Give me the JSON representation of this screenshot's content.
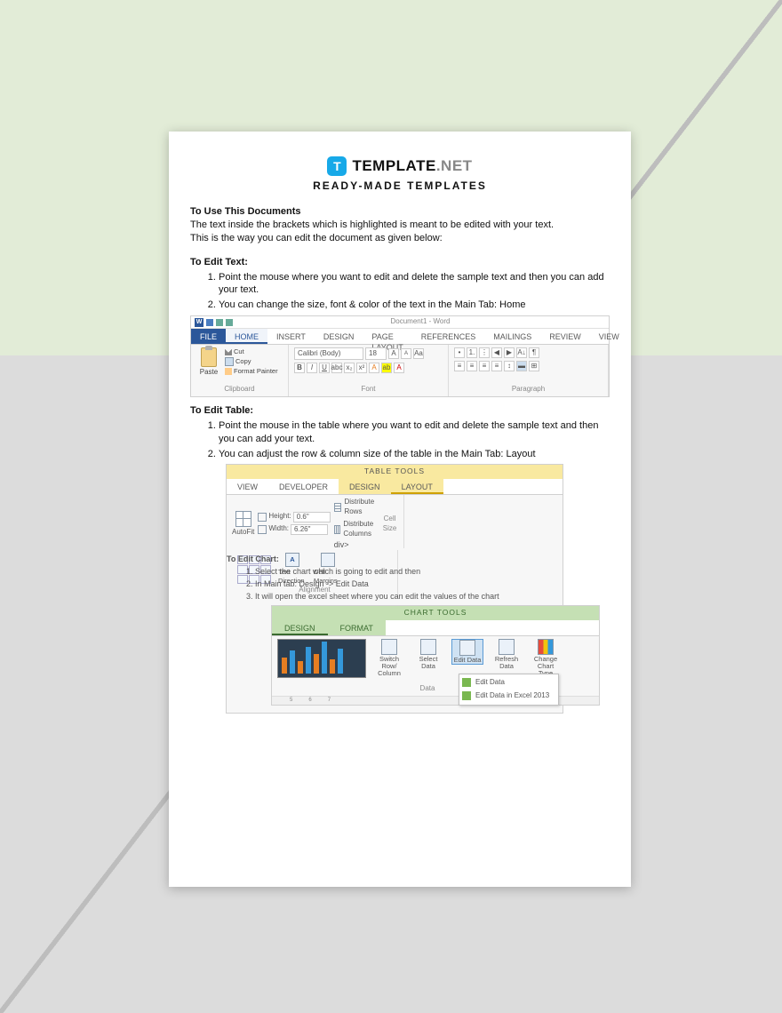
{
  "brand": {
    "badge_letter": "T",
    "name": "TEMPLATE",
    "suffix": ".NET",
    "tagline": "READY-MADE TEMPLATES"
  },
  "intro": {
    "heading": "To Use This Documents",
    "line1": "The text inside the brackets which is highlighted is meant to be edited with your text.",
    "line2": "This is the way you can edit the document as given below:"
  },
  "edit_text": {
    "heading": "To Edit Text:",
    "steps": [
      "Point the mouse where you want to edit and delete the sample text and then you can add your text.",
      "You can change the size, font & color of the text in the Main Tab: Home"
    ]
  },
  "edit_table": {
    "heading": "To Edit Table:",
    "steps": [
      "Point the mouse in the table where you want to edit and delete the sample text and then you can add your text.",
      "You can adjust the row & column size of the table in the Main Tab: Layout"
    ]
  },
  "edit_chart": {
    "heading": "To Edit Chart:",
    "steps": [
      "Select the chart which is going to edit and then",
      "In Main tab: Design -> Edit Data",
      "It will open the excel sheet where you can edit the values of the chart"
    ]
  },
  "ribbon1": {
    "doc_title": "Document1 - Word",
    "tabs": [
      "FILE",
      "HOME",
      "INSERT",
      "DESIGN",
      "PAGE LAYOUT",
      "REFERENCES",
      "MAILINGS",
      "REVIEW",
      "VIEW"
    ],
    "active_tab": "HOME",
    "clipboard": {
      "paste": "Paste",
      "cut": "Cut",
      "copy": "Copy",
      "format_painter": "Format Painter",
      "group": "Clipboard"
    },
    "font": {
      "name": "Calibri (Body)",
      "size": "18",
      "group": "Font"
    },
    "paragraph": {
      "group": "Paragraph"
    }
  },
  "ribbon2": {
    "tools": "TABLE TOOLS",
    "left_tabs": [
      "VIEW",
      "DEVELOPER"
    ],
    "ctx_tabs": [
      "DESIGN",
      "LAYOUT"
    ],
    "active": "LAYOUT",
    "autofit": "AutoFit",
    "height_label": "Height:",
    "height_val": "0.6\"",
    "width_label": "Width:",
    "width_val": "6.26\"",
    "dist_rows": "Distribute Rows",
    "dist_cols": "Distribute Columns",
    "cell_size": "Cell Size",
    "text_dir": "Text Direction",
    "cell_margins": "Cell Margins",
    "alignment": "Alignment"
  },
  "ribbon3": {
    "tools": "CHART TOOLS",
    "ctx_tabs": [
      "DESIGN",
      "FORMAT"
    ],
    "active": "DESIGN",
    "switch": "Switch Row/ Column",
    "select": "Select Data",
    "edit": "Edit Data",
    "refresh": "Refresh Data",
    "change": "Change Chart Type",
    "group_data": "Data",
    "menu1": "Edit Data",
    "menu2": "Edit Data in Excel 2013",
    "ruler_marks": [
      "5",
      "6",
      "7"
    ],
    "chart_bars": [
      18,
      26,
      14,
      30,
      22,
      36,
      16,
      28
    ]
  }
}
